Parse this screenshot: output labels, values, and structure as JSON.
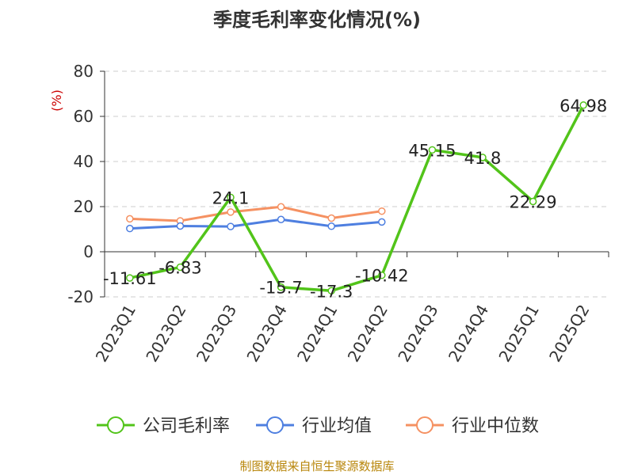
{
  "title": "季度毛利率变化情况(%)",
  "source": "制图数据来自恒生聚源数据库",
  "colors": {
    "series": [
      "#52c41a",
      "#4e7fe0",
      "#f59162"
    ],
    "grid": "#cccccc",
    "axis": "#333333",
    "unit": "#cc0000",
    "source": "#b8860b"
  },
  "chart_data": {
    "type": "line",
    "title": "季度毛利率变化情况(%)",
    "ylabel": "(%)",
    "xlabel": "",
    "categories": [
      "2023Q1",
      "2023Q2",
      "2023Q3",
      "2023Q4",
      "2024Q1",
      "2024Q2",
      "2024Q3",
      "2024Q4",
      "2025Q1",
      "2025Q2"
    ],
    "ylim": [
      -20,
      80
    ],
    "yticks": [
      -20,
      0,
      20,
      40,
      60,
      80
    ],
    "grid": true,
    "legend_position": "bottom",
    "series": [
      {
        "name": "公司毛利率",
        "values": [
          -11.61,
          -6.83,
          24.1,
          -15.7,
          -17.3,
          -10.42,
          45.15,
          41.8,
          22.29,
          64.98
        ],
        "labels": [
          "-11.61",
          "-6.83",
          "24.1",
          "-15.7",
          "-17.3",
          "-10.42",
          "45.15",
          "41.8",
          "22.29",
          "64.98"
        ]
      },
      {
        "name": "行业均值",
        "values": [
          10.3,
          11.4,
          11.2,
          14.3,
          11.3,
          13.2,
          null,
          null,
          null,
          null
        ]
      },
      {
        "name": "行业中位数",
        "values": [
          14.6,
          13.7,
          17.6,
          19.9,
          14.9,
          18.0,
          null,
          null,
          null,
          null
        ]
      }
    ]
  }
}
